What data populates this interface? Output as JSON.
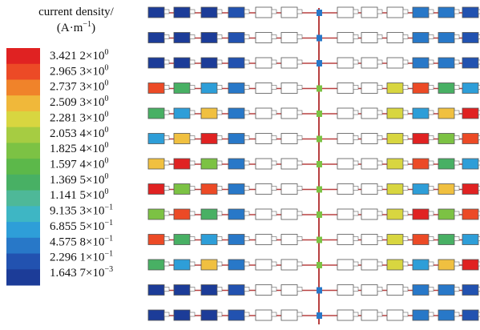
{
  "legend": {
    "title": "current density/",
    "unit": "(A·m",
    "unit_exp": "−1",
    "unit_close": ")",
    "colors": [
      "#e02222",
      "#ec4a26",
      "#f0832a",
      "#f0b83a",
      "#d8d640",
      "#a6cc42",
      "#7cc244",
      "#5cb84a",
      "#48b064",
      "#4eb898",
      "#3eb6c4",
      "#2e9ed8",
      "#2878c8",
      "#2252b0",
      "#1c3c98"
    ],
    "labels": [
      {
        "text": "3.421 2×10",
        "exp": "0"
      },
      {
        "text": "2.965 3×10",
        "exp": "0"
      },
      {
        "text": "2.737 3×10",
        "exp": "0"
      },
      {
        "text": "2.509 3×10",
        "exp": "0"
      },
      {
        "text": "2.281 3×10",
        "exp": "0"
      },
      {
        "text": "2.053 4×10",
        "exp": "0"
      },
      {
        "text": "1.825 4×10",
        "exp": "0"
      },
      {
        "text": "1.597 4×10",
        "exp": "0"
      },
      {
        "text": "1.369 5×10",
        "exp": "0"
      },
      {
        "text": "1.141 5×10",
        "exp": "0"
      },
      {
        "text": "9.135 3×10",
        "exp": "−1"
      },
      {
        "text": "6.855 5×10",
        "exp": "−1"
      },
      {
        "text": "4.575 8×10",
        "exp": "−1"
      },
      {
        "text": "2.296 1×10",
        "exp": "−1"
      },
      {
        "text": "1.643 7×10",
        "exp": "−3"
      }
    ]
  }
}
